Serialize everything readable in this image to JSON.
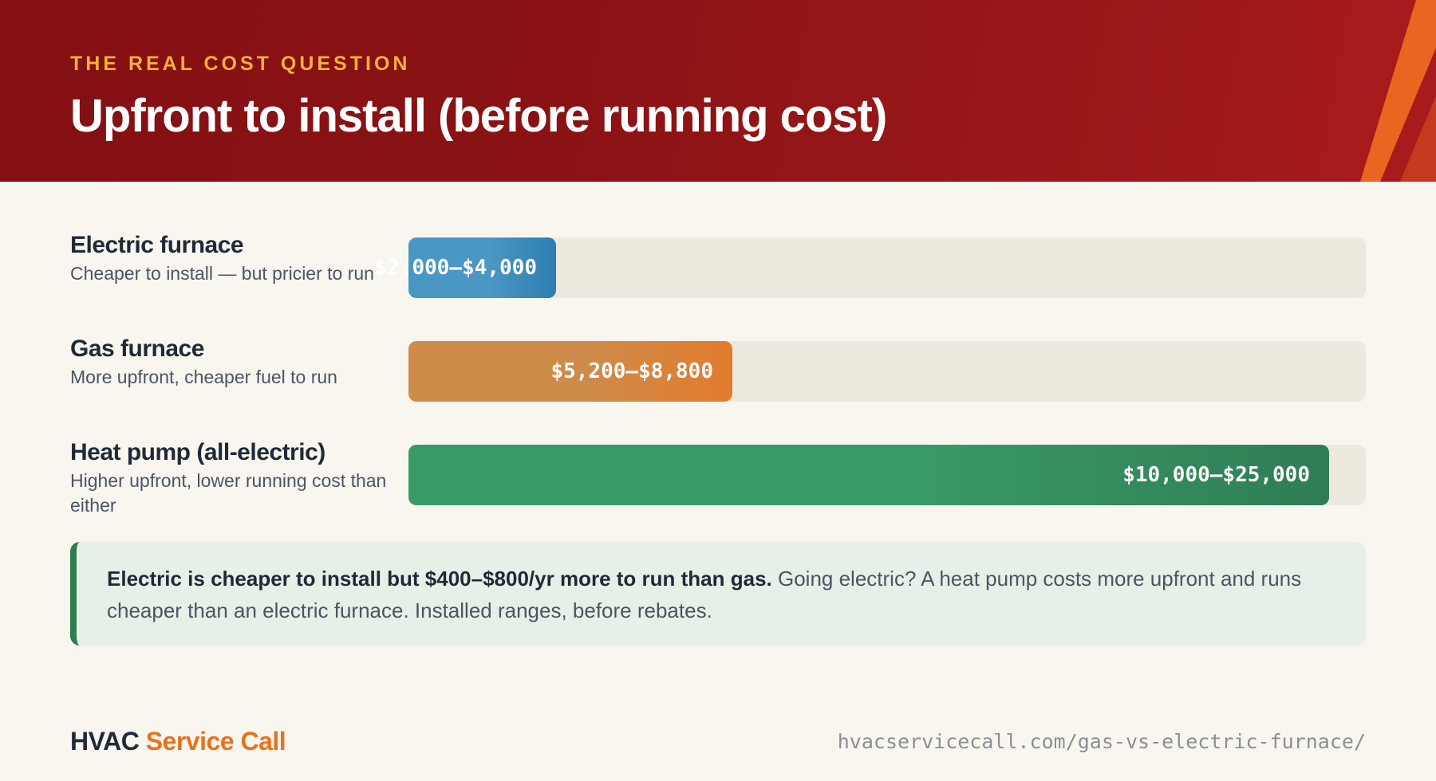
{
  "header": {
    "eyebrow": "THE REAL COST QUESTION",
    "title": "Upfront to install (before running cost)"
  },
  "chart_data": {
    "type": "bar",
    "orientation": "horizontal",
    "title": "Upfront to install (before running cost)",
    "categories": [
      "Electric furnace",
      "Gas furnace",
      "Heat pump (all-electric)"
    ],
    "descriptions": [
      "Cheaper to install — but pricier to run",
      "More upfront, cheaper fuel to run",
      "Higher upfront, lower running cost than either"
    ],
    "ranges": [
      [
        2000,
        4000
      ],
      [
        5200,
        8800
      ],
      [
        10000,
        25000
      ]
    ],
    "value_labels": [
      "$2,000–$4,000",
      "$5,200–$8,800",
      "$10,000–$25,000"
    ],
    "xlim": [
      0,
      26000
    ],
    "colors": [
      [
        "#4a97c4",
        "#2d7db0"
      ],
      [
        "#cf8b49",
        "#e37b2e"
      ],
      [
        "#3a9a66",
        "#2f7d55"
      ]
    ],
    "grid": false,
    "legend": "none"
  },
  "note": {
    "strong": "Electric is cheaper to install but $400–$800/yr more to run than gas.",
    "text": " Going electric? A heat pump costs more upfront and runs cheaper than an electric furnace. Installed ranges, before rebates."
  },
  "footer": {
    "brand_a": "HVAC",
    "brand_b": "Service Call",
    "url": "hvacservicecall.com/gas-vs-electric-furnace/"
  }
}
